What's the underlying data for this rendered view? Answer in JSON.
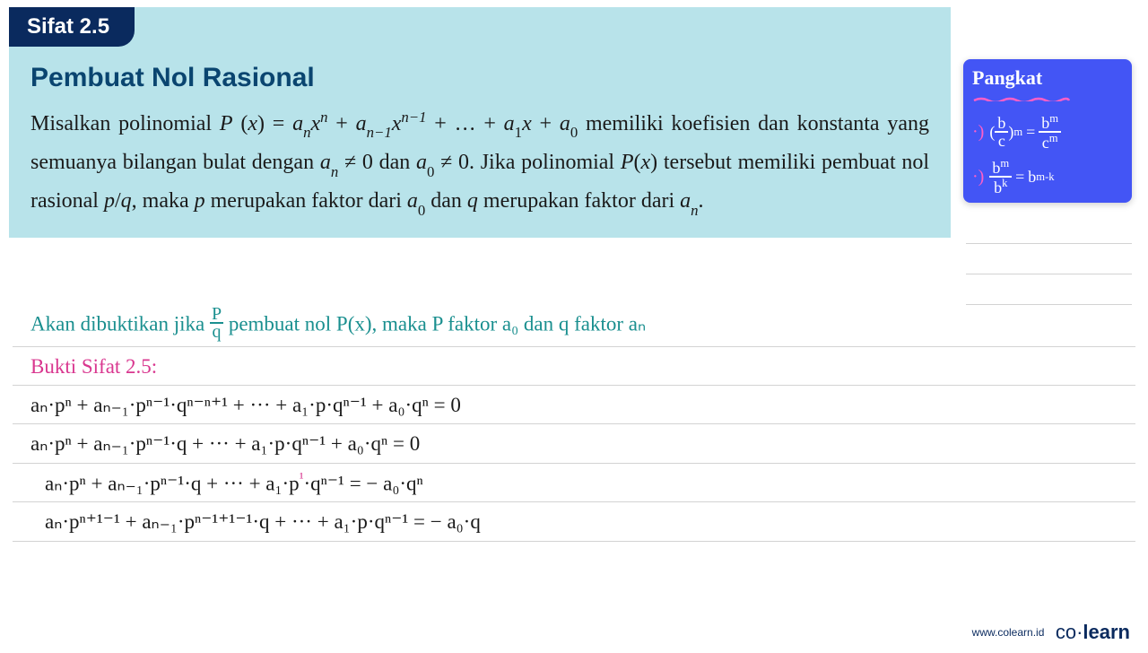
{
  "theorem": {
    "tab": "Sifat 2.5",
    "title": "Pembuat Nol Rasional",
    "body_html": "Misalkan polinomial <i>P</i> (<i>x</i>) = <i>a<sub>n</sub>x<sup>n</sup></i> + <i>a<sub>n−1</sub>x<sup>n−1</sup></i> + … + <i>a</i><sub>1</sub><i>x</i> + <i>a</i><sub>0</sub> memiliki koefisien dan konstanta yang semuanya bilangan bulat dengan <i>a<sub>n</sub></i> ≠ 0 dan <i>a</i><sub>0</sub> ≠ 0. Jika polinomial <i>P</i>(<i>x</i>) tersebut memiliki pembuat nol rasional <i>p</i>/<i>q</i>, maka <i>p</i> merupakan faktor dari <i>a</i><sub>0</sub> dan <i>q</i> merupakan faktor dari <i>a<sub>n</sub></i>."
  },
  "sidenote": {
    "title": "Pangkat",
    "bg_color": "#4355f5",
    "text_color": "#ffffff",
    "accent_color": "#ff5fc7",
    "rules": [
      {
        "lhs_num": "b",
        "lhs_den": "c",
        "lhs_exp": "m",
        "rhs_num": "b",
        "rhs_num_exp": "m",
        "rhs_den": "c",
        "rhs_den_exp": "m"
      },
      {
        "num": "b",
        "num_exp": "m",
        "den": "b",
        "den_exp": "k",
        "rhs_base": "b",
        "rhs_exp": "m-k"
      }
    ]
  },
  "handwriting": {
    "colors": {
      "teal": "#1a8f8f",
      "magenta": "#d9378f",
      "black": "#1a1a1a"
    },
    "line1_prefix": "Akan dibuktikan jika ",
    "line1_frac_num": "P",
    "line1_frac_den": "q",
    "line1_suffix": " pembuat nol P(x), maka P faktor a₀ dan q faktor aₙ",
    "line2": "Bukti Sifat 2.5:",
    "line3": "aₙ·pⁿ + aₙ₋₁·pⁿ⁻¹·qⁿ⁻ⁿ⁺¹ + ··· + a₁·p·qⁿ⁻¹ + a₀·qⁿ = 0",
    "line4": "aₙ·pⁿ + aₙ₋₁·pⁿ⁻¹·q + ··· + a₁·p·qⁿ⁻¹ + a₀·qⁿ = 0",
    "line5a": "aₙ·pⁿ + aₙ₋₁·pⁿ⁻¹·q + ··· + a₁·p",
    "line5exp": "¹",
    "line5b": "·qⁿ⁻¹ = − a₀·qⁿ",
    "line6": "aₙ·pⁿ⁺¹⁻¹ + aₙ₋₁·pⁿ⁻¹⁺¹⁻¹·q + ··· + a₁·p·qⁿ⁻¹ = − a₀·q"
  },
  "footer": {
    "url": "www.colearn.id",
    "brand_light": "co",
    "brand_sep": "·",
    "brand_bold": "learn"
  },
  "style": {
    "theorem_bg": "#b8e3ea",
    "tab_bg": "#0a2a5e",
    "title_color": "#0a4570",
    "body_color": "#1a1a1a",
    "rule_color": "#d3d3d3",
    "footer_color": "#0a2a5e",
    "body_fontsize": 24,
    "title_fontsize": 30,
    "hw_fontsize": 23
  }
}
